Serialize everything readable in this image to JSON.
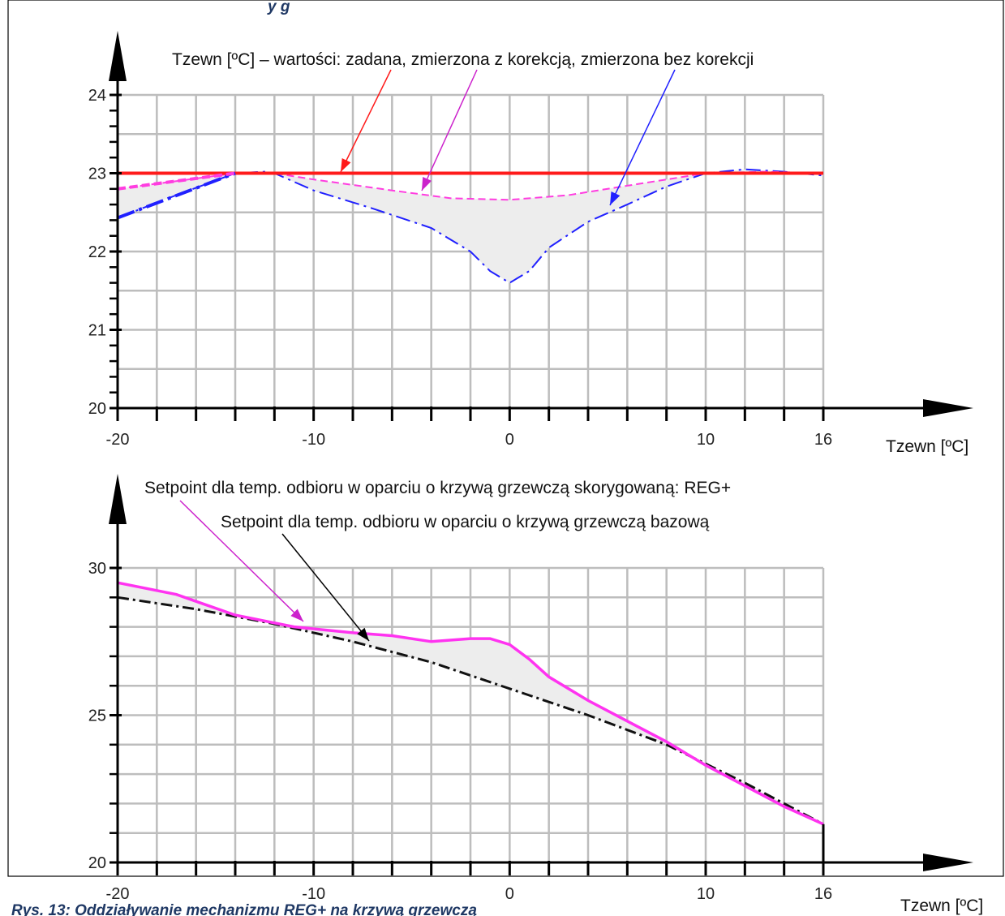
{
  "header_fragment": "y        g",
  "caption": "Rys. 13: Oddziaływanie mechanizmu REG+ na krzywą grzewczą",
  "colors": {
    "setpoint_red": "#ff1a1a",
    "measured_corr_magenta": "#ff3de0",
    "measured_raw_blue": "#2020ff",
    "reg_plus_magenta": "#ff33f0",
    "base_black": "#111111",
    "fill_gray": "#ededed",
    "grid_gray": "#bdbdbd"
  },
  "chart_data": [
    {
      "type": "line",
      "title": "",
      "xlabel": "Tzewn [ºC]",
      "ylabel": "",
      "xlim": [
        -20,
        16
      ],
      "ylim": [
        20,
        24
      ],
      "x_ticks": [
        "-20",
        "-10",
        "0",
        "10",
        "16"
      ],
      "y_ticks": [
        "20",
        "21",
        "22",
        "23",
        "24"
      ],
      "grid": true,
      "annotation": "Tzewn [ºC] – wartości: zadana, zmierzona z korekcją, zmierzona bez korekcji",
      "series": [
        {
          "key": "setpoint",
          "style": "solid",
          "x": [
            -20,
            16
          ],
          "y": [
            23.0,
            23.0
          ]
        },
        {
          "key": "measured_with_correction",
          "style": "dashed",
          "x": [
            -20,
            -17,
            -14,
            -12,
            -10,
            -6,
            -3,
            0,
            3,
            6,
            9,
            10,
            13,
            16
          ],
          "y": [
            22.8,
            22.9,
            23.0,
            23.0,
            22.92,
            22.78,
            22.68,
            22.66,
            22.72,
            22.84,
            22.96,
            23.0,
            23.02,
            23.0
          ]
        },
        {
          "key": "measured_without_correction",
          "style": "dash-dot",
          "x": [
            -20,
            -17,
            -14,
            -12.5,
            -12,
            -10,
            -7,
            -4,
            -2,
            -1,
            0,
            1,
            2,
            4,
            6,
            8,
            10,
            12,
            14,
            16
          ],
          "y": [
            22.43,
            22.72,
            23.0,
            23.02,
            23.0,
            22.78,
            22.55,
            22.3,
            22.0,
            21.75,
            21.6,
            21.75,
            22.05,
            22.38,
            22.6,
            22.83,
            23.0,
            23.05,
            23.02,
            22.97
          ]
        }
      ]
    },
    {
      "type": "line",
      "title": "",
      "xlabel": "Tzewn [ºC]",
      "ylabel": "",
      "xlim": [
        -20,
        16
      ],
      "ylim": [
        20,
        30
      ],
      "x_ticks": [
        "-20",
        "-10",
        "0",
        "10",
        "16"
      ],
      "y_ticks": [
        "20",
        "25",
        "30"
      ],
      "grid": true,
      "annotations": [
        "Setpoint dla temp. odbioru w oparciu o krzywą grzewczą skorygowaną: REG+",
        "Setpoint dla temp. odbioru w oparciu o krzywą grzewczą bazową"
      ],
      "series": [
        {
          "key": "reg_plus",
          "style": "solid",
          "x": [
            -20,
            -17,
            -14,
            -11,
            -8,
            -6,
            -4,
            -2,
            -1,
            0,
            1,
            2,
            4,
            6,
            8,
            10,
            12,
            14,
            16
          ],
          "y": [
            29.5,
            29.1,
            28.4,
            28.0,
            27.8,
            27.7,
            27.5,
            27.6,
            27.6,
            27.4,
            26.9,
            26.3,
            25.5,
            24.8,
            24.1,
            23.3,
            22.6,
            21.9,
            21.3
          ]
        },
        {
          "key": "base",
          "style": "dash-dot",
          "x": [
            -20,
            -16,
            -12,
            -8,
            -4,
            0,
            4,
            8,
            12,
            16
          ],
          "y": [
            29.0,
            28.6,
            28.1,
            27.5,
            26.8,
            25.9,
            25.0,
            24.0,
            22.7,
            21.3
          ]
        }
      ]
    }
  ]
}
